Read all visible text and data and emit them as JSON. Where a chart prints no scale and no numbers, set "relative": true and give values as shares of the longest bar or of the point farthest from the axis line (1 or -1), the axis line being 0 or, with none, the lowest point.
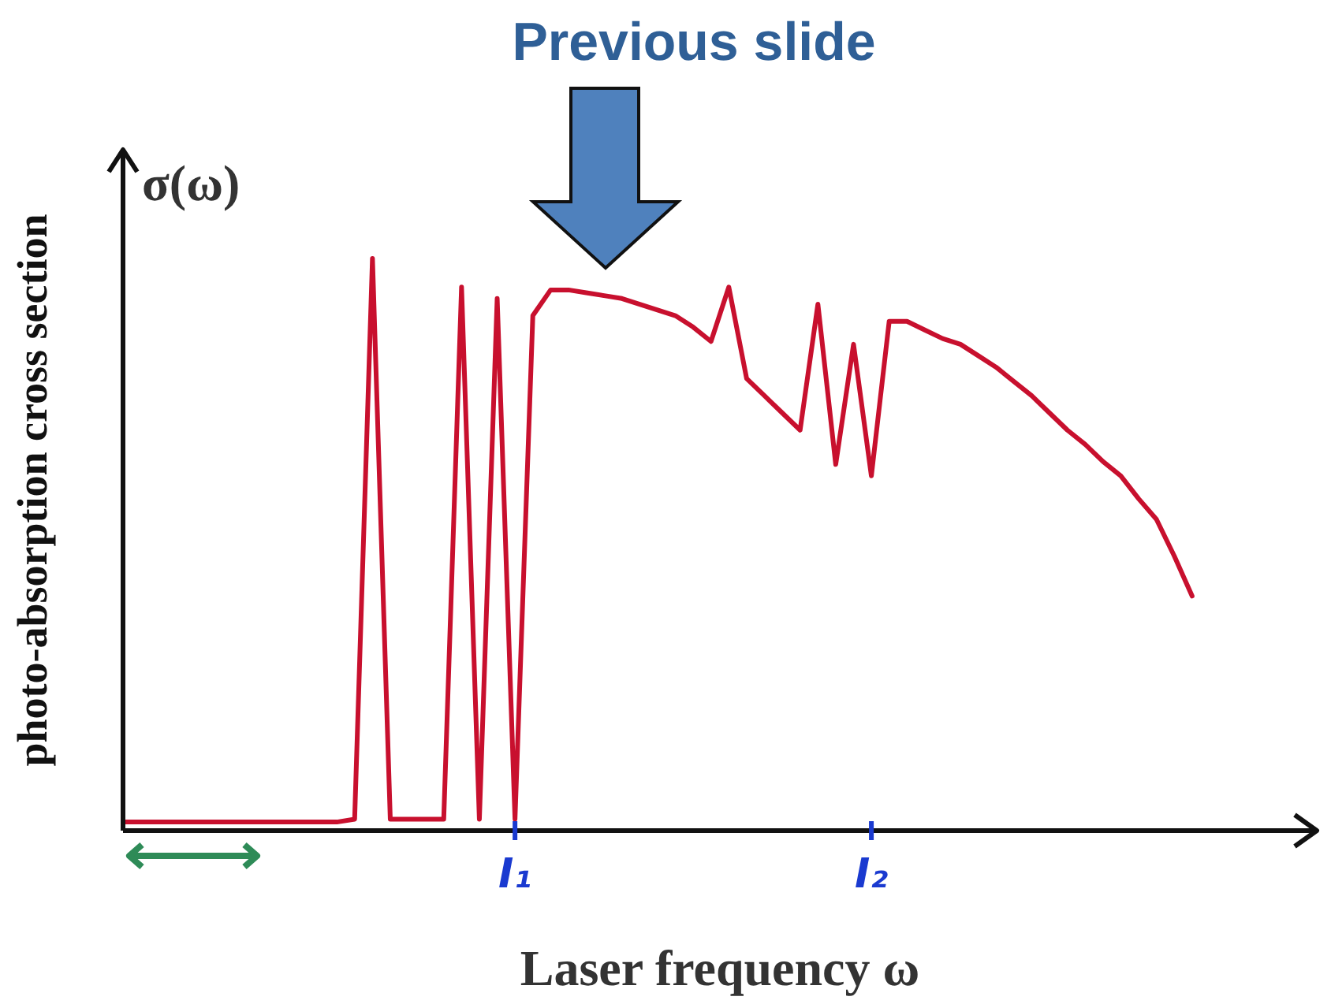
{
  "chart_data": {
    "type": "line",
    "title": "Previous slide",
    "xlabel": "Laser frequency  ω",
    "ylabel": "photo-absorption cross section",
    "annotations": [
      "σ(ω)"
    ],
    "relative": true,
    "grid": false,
    "marker": "none",
    "line_style": "solid",
    "categories": [
      null,
      null,
      null,
      null,
      null,
      null,
      null,
      null,
      null,
      null,
      null,
      null,
      null,
      null,
      null,
      null,
      null,
      null,
      null,
      null,
      null,
      null,
      "I₁",
      null,
      null,
      null,
      null,
      null,
      null,
      null,
      null,
      null,
      null,
      null,
      null,
      null,
      null,
      null,
      null,
      null,
      null,
      null,
      "I₂",
      null,
      null,
      null,
      null,
      null,
      null,
      null,
      null,
      null,
      null,
      null,
      null,
      null,
      null,
      null,
      null,
      null,
      null,
      null,
      null,
      null,
      null,
      null,
      null,
      null
    ],
    "series": [
      {
        "color": "#c8102e",
        "values": [
          0.015,
          0.015,
          0.015,
          0.015,
          0.015,
          0.015,
          0.015,
          0.015,
          0.015,
          0.015,
          0.015,
          0.015,
          0.015,
          0.02,
          1.0,
          0.02,
          0.02,
          0.02,
          0.02,
          0.95,
          0.02,
          0.93,
          0.02,
          0.9,
          0.945,
          0.945,
          0.94,
          0.935,
          0.93,
          0.92,
          0.91,
          0.9,
          0.88,
          0.855,
          0.95,
          0.79,
          0.76,
          0.73,
          0.7,
          0.92,
          0.64,
          0.85,
          0.62,
          0.89,
          0.89,
          0.875,
          0.86,
          0.85,
          0.83,
          0.81,
          0.785,
          0.76,
          0.73,
          0.7,
          0.675,
          0.645,
          0.62,
          0.58,
          0.544,
          0.48,
          0.41,
          null,
          null,
          null,
          null,
          null,
          null,
          null
        ]
      }
    ]
  }
}
